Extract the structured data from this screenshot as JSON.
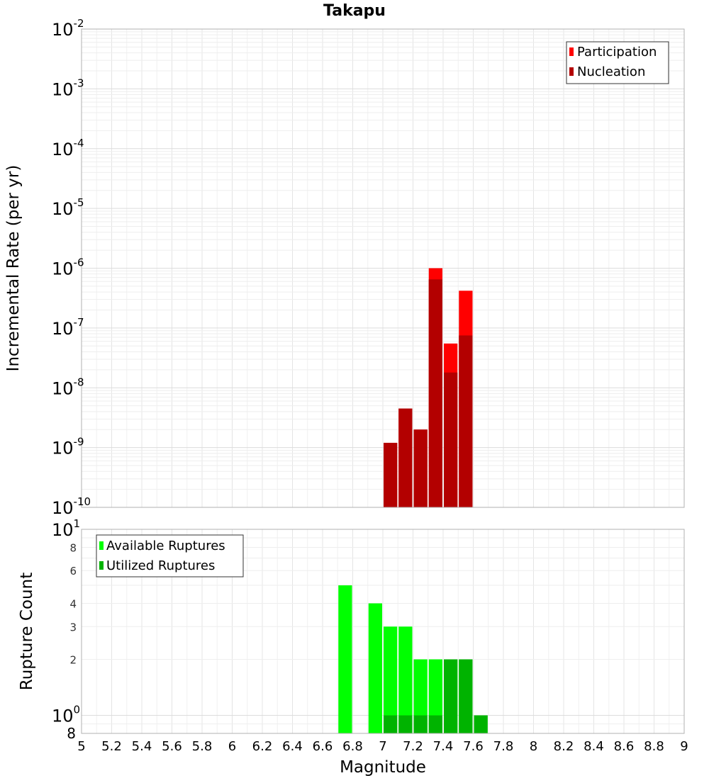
{
  "chart_data": [
    {
      "type": "bar",
      "title": "Takapu",
      "ylabel": "Incremental Rate (per yr)",
      "xlabel": "",
      "xlim": [
        5,
        9
      ],
      "ylim": [
        1e-10,
        0.01
      ],
      "yscale": "log",
      "bar_width": 0.1,
      "grid": true,
      "legend_position": "top-right",
      "y_ticks": [
        {
          "base": "10",
          "exp": "-10",
          "value": 1e-10
        },
        {
          "base": "10",
          "exp": "-9",
          "value": 1e-09
        },
        {
          "base": "10",
          "exp": "-8",
          "value": 1e-08
        },
        {
          "base": "10",
          "exp": "-7",
          "value": 1e-07
        },
        {
          "base": "10",
          "exp": "-6",
          "value": 1e-06
        },
        {
          "base": "10",
          "exp": "-5",
          "value": 1e-05
        },
        {
          "base": "10",
          "exp": "-4",
          "value": 0.0001
        },
        {
          "base": "10",
          "exp": "-3",
          "value": 0.001
        },
        {
          "base": "10",
          "exp": "-2",
          "value": 0.01
        }
      ],
      "series": [
        {
          "name": "Participation",
          "color": "#ff0000",
          "x": [
            7.05,
            7.15,
            7.25,
            7.35,
            7.45,
            7.55
          ],
          "values": [
            1.2e-09,
            4.5e-09,
            2e-09,
            1e-06,
            5.5e-08,
            4.2e-07
          ]
        },
        {
          "name": "Nucleation",
          "color": "#b30000",
          "x": [
            7.05,
            7.15,
            7.25,
            7.35,
            7.45,
            7.55
          ],
          "values": [
            1.2e-09,
            4.5e-09,
            2e-09,
            6.5e-07,
            1.8e-08,
            7.5e-08
          ]
        }
      ]
    },
    {
      "type": "bar",
      "title": "",
      "ylabel": "Rupture Count",
      "xlabel": "Magnitude",
      "xlim": [
        5,
        9
      ],
      "ylim": [
        0.8,
        10
      ],
      "yscale": "log",
      "bar_width": 0.1,
      "grid": true,
      "legend_position": "top-left",
      "x_ticks": [
        "5",
        "5.2",
        "5.4",
        "5.6",
        "5.8",
        "6",
        "6.2",
        "6.4",
        "6.6",
        "6.8",
        "7",
        "7.2",
        "7.4",
        "7.6",
        "7.8",
        "8",
        "8.2",
        "8.4",
        "8.6",
        "8.8",
        "9"
      ],
      "y_major_ticks": [
        {
          "base": "10",
          "exp": "0",
          "value": 1
        },
        {
          "base": "10",
          "exp": "1",
          "value": 10
        }
      ],
      "y_minor_ticks": [
        {
          "label": "2",
          "value": 2
        },
        {
          "label": "3",
          "value": 3
        },
        {
          "label": "4",
          "value": 4
        },
        {
          "label": "6",
          "value": 6
        },
        {
          "label": "8",
          "value": 8
        }
      ],
      "y_bottom_label": {
        "label": "8",
        "value": 0.8
      },
      "series": [
        {
          "name": "Available Ruptures",
          "color": "#00ff00",
          "x": [
            6.75,
            6.95,
            7.05,
            7.15,
            7.25,
            7.35,
            7.45,
            7.55,
            7.65
          ],
          "values": [
            5,
            4,
            3,
            3,
            2,
            2,
            2,
            2,
            1
          ]
        },
        {
          "name": "Utilized Ruptures",
          "color": "#00b300",
          "x": [
            7.05,
            7.15,
            7.25,
            7.35,
            7.45,
            7.55,
            7.65
          ],
          "values": [
            1,
            1,
            1,
            1,
            2,
            2,
            1
          ]
        }
      ]
    }
  ]
}
